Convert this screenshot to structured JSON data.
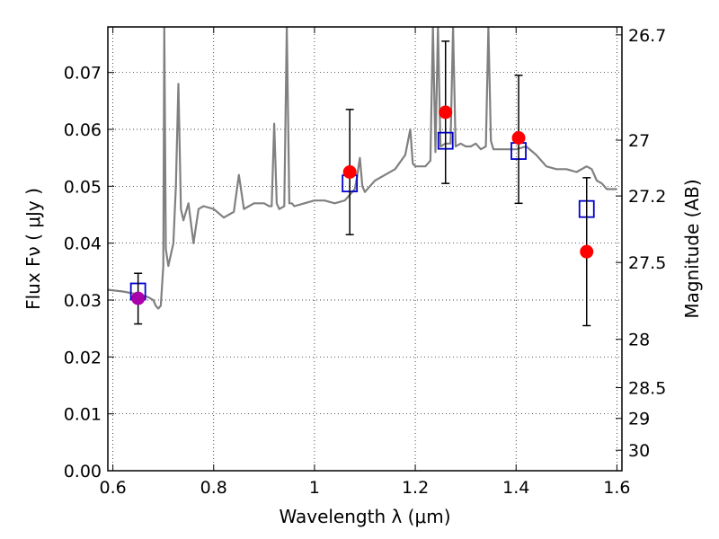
{
  "chart_data": {
    "type": "scatter",
    "xlabel": "Wavelength  λ (μm)",
    "ylabel": "Flux  Fν  ( μJy )",
    "ylabel_right": "Magnitude (AB)",
    "xlim": [
      0.59,
      1.61
    ],
    "ylim": [
      0.0,
      0.078
    ],
    "x_ticks": [
      0.6,
      0.8,
      1.0,
      1.2,
      1.4,
      1.6
    ],
    "x_tick_labels": [
      "0.6",
      "0.8",
      "1",
      "1.2",
      "1.4",
      "1.6"
    ],
    "y_ticks": [
      0.0,
      0.01,
      0.02,
      0.03,
      0.04,
      0.05,
      0.06,
      0.07
    ],
    "y_tick_labels": [
      "0.00",
      "0.01",
      "0.02",
      "0.03",
      "0.04",
      "0.05",
      "0.06",
      "0.07"
    ],
    "right_ticks": [
      {
        "label": "26.7",
        "flux": 0.0766
      },
      {
        "label": "27",
        "flux": 0.0581
      },
      {
        "label": "27.2",
        "flux": 0.0483
      },
      {
        "label": "27.5",
        "flux": 0.0366
      },
      {
        "label": "28",
        "flux": 0.0231
      },
      {
        "label": "28.5",
        "flux": 0.0146
      },
      {
        "label": "29",
        "flux": 0.0092
      },
      {
        "label": "30",
        "flux": 0.0036
      }
    ],
    "grid": true,
    "series": [
      {
        "kind": "model_spectrum",
        "color": "#808080",
        "x": [
          0.59,
          0.62,
          0.65,
          0.67,
          0.68,
          0.685,
          0.69,
          0.695,
          0.7,
          0.702,
          0.705,
          0.71,
          0.72,
          0.725,
          0.73,
          0.735,
          0.74,
          0.75,
          0.76,
          0.77,
          0.78,
          0.8,
          0.82,
          0.83,
          0.84,
          0.85,
          0.86,
          0.87,
          0.88,
          0.9,
          0.91,
          0.915,
          0.92,
          0.925,
          0.93,
          0.94,
          0.945,
          0.95,
          0.955,
          0.96,
          0.98,
          1.0,
          1.01,
          1.02,
          1.04,
          1.06,
          1.08,
          1.085,
          1.09,
          1.095,
          1.1,
          1.12,
          1.14,
          1.16,
          1.18,
          1.19,
          1.195,
          1.2,
          1.22,
          1.23,
          1.235,
          1.24,
          1.245,
          1.25,
          1.26,
          1.27,
          1.275,
          1.28,
          1.29,
          1.3,
          1.31,
          1.32,
          1.33,
          1.34,
          1.345,
          1.35,
          1.355,
          1.36,
          1.38,
          1.4,
          1.42,
          1.44,
          1.46,
          1.48,
          1.5,
          1.52,
          1.54,
          1.55,
          1.56,
          1.57,
          1.58,
          1.6
        ],
        "y": [
          0.0318,
          0.0315,
          0.031,
          0.0305,
          0.03,
          0.029,
          0.0285,
          0.029,
          0.036,
          0.078,
          0.039,
          0.036,
          0.04,
          0.05,
          0.068,
          0.046,
          0.044,
          0.047,
          0.04,
          0.046,
          0.0465,
          0.046,
          0.0445,
          0.045,
          0.0455,
          0.052,
          0.046,
          0.0465,
          0.047,
          0.047,
          0.0465,
          0.0465,
          0.061,
          0.047,
          0.046,
          0.0465,
          0.078,
          0.047,
          0.047,
          0.0465,
          0.047,
          0.0475,
          0.0475,
          0.0475,
          0.047,
          0.0475,
          0.0495,
          0.052,
          0.055,
          0.05,
          0.049,
          0.051,
          0.052,
          0.053,
          0.0555,
          0.06,
          0.054,
          0.0535,
          0.0535,
          0.0545,
          0.078,
          0.056,
          0.078,
          0.057,
          0.0575,
          0.0575,
          0.078,
          0.057,
          0.0575,
          0.057,
          0.057,
          0.0575,
          0.0565,
          0.057,
          0.078,
          0.058,
          0.0565,
          0.0565,
          0.0565,
          0.0565,
          0.057,
          0.0555,
          0.0535,
          0.053,
          0.053,
          0.0525,
          0.0535,
          0.053,
          0.051,
          0.0505,
          0.0495,
          0.0495
        ]
      },
      {
        "kind": "model_band_flux",
        "marker": "open-square",
        "color": "#0000cc",
        "x": [
          0.65,
          1.07,
          1.26,
          1.405,
          1.54
        ],
        "y": [
          0.0315,
          0.0505,
          0.058,
          0.0562,
          0.046
        ]
      },
      {
        "kind": "observed_flux",
        "marker": "filled-circle",
        "color": "#ff0000",
        "x": [
          1.07,
          1.26,
          1.405,
          1.54
        ],
        "y": [
          0.0525,
          0.063,
          0.0585,
          0.0385
        ],
        "yerr_low": [
          0.0415,
          0.0505,
          0.047,
          0.0255
        ],
        "yerr_high": [
          0.0635,
          0.0755,
          0.0695,
          0.0515
        ]
      },
      {
        "kind": "observed_flux_blue",
        "marker": "filled-circle",
        "color": "#aa00aa",
        "x": [
          0.65
        ],
        "y": [
          0.0303
        ],
        "yerr_low": [
          0.0258
        ],
        "yerr_high": [
          0.0347
        ]
      }
    ]
  }
}
